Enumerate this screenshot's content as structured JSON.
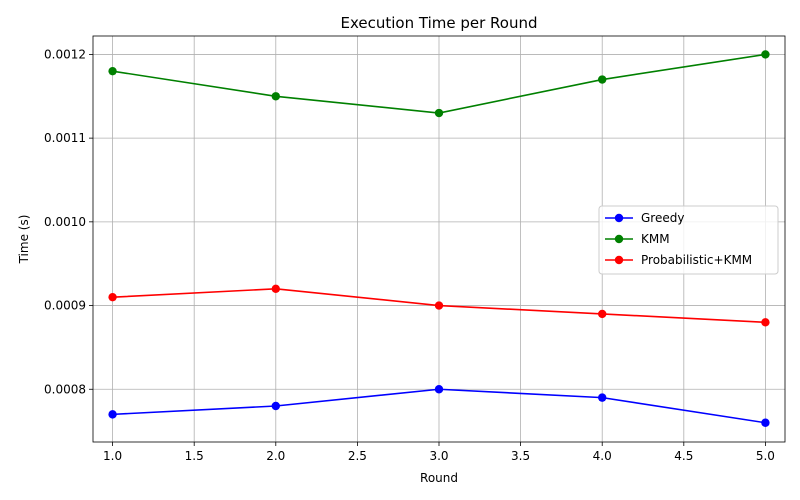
{
  "chart_data": {
    "type": "line",
    "title": "Execution Time per Round",
    "xlabel": "Round",
    "ylabel": "Time (s)",
    "xlim": [
      0.88,
      5.12
    ],
    "ylim": [
      0.000737,
      0.001222
    ],
    "xticks": [
      1.0,
      1.5,
      2.0,
      2.5,
      3.0,
      3.5,
      4.0,
      4.5,
      5.0
    ],
    "xtick_labels": [
      "1.0",
      "1.5",
      "2.0",
      "2.5",
      "3.0",
      "3.5",
      "4.0",
      "4.5",
      "5.0"
    ],
    "yticks": [
      0.0008,
      0.0009,
      0.001,
      0.0011,
      0.0012
    ],
    "ytick_labels": [
      "0.0008",
      "0.0009",
      "0.0010",
      "0.0011",
      "0.0012"
    ],
    "grid": true,
    "legend_position": "center-right",
    "x": [
      1,
      2,
      3,
      4,
      5
    ],
    "series": [
      {
        "name": "Greedy",
        "color": "#0000ff",
        "values": [
          0.00077,
          0.00078,
          0.0008,
          0.00079,
          0.00076
        ]
      },
      {
        "name": "KMM",
        "color": "#008000",
        "values": [
          0.00118,
          0.00115,
          0.00113,
          0.00117,
          0.0012
        ]
      },
      {
        "name": "Probabilistic+KMM",
        "color": "#ff0000",
        "values": [
          0.00091,
          0.00092,
          0.0009,
          0.00089,
          0.00088
        ]
      }
    ]
  }
}
